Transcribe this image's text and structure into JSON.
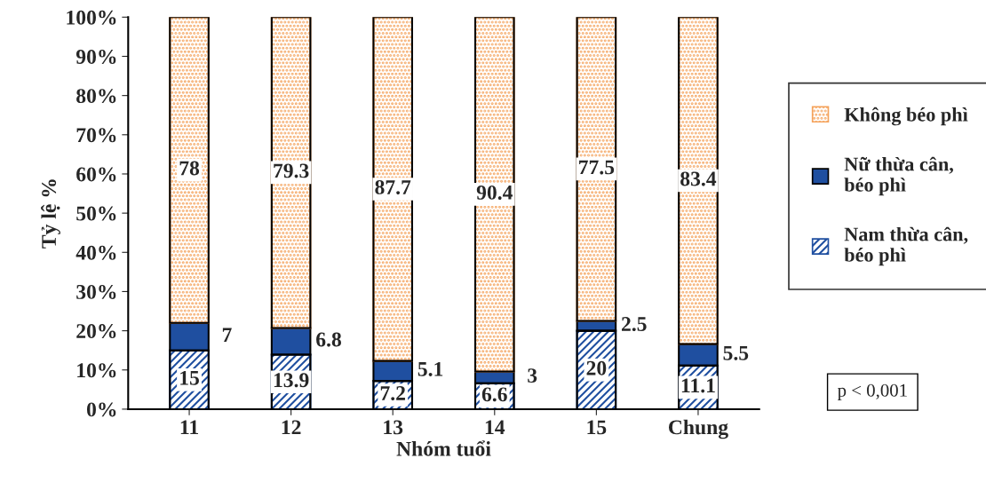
{
  "chart_data": {
    "type": "bar",
    "stacked": true,
    "xlabel": "Nhóm tuổi",
    "ylabel": "Tỷ lệ %",
    "categories": [
      "11",
      "12",
      "13",
      "14",
      "15",
      "Chung"
    ],
    "series": [
      {
        "name": "Nam thừa cân,\nbéo phì",
        "color": "#1f4fa0",
        "values": [
          15,
          13.9,
          7.2,
          6.6,
          20,
          11.1
        ]
      },
      {
        "name": "Nữ thừa cân,\nbéo phì",
        "color": "#1f4fa0",
        "values": [
          7,
          6.8,
          5.1,
          3,
          2.5,
          5.5
        ]
      },
      {
        "name": "Không béo phì",
        "color": "#f5a35c",
        "values": [
          78,
          79.3,
          87.7,
          90.4,
          77.5,
          83.4
        ]
      }
    ],
    "ylim": [
      0,
      100
    ],
    "yticks": [
      {
        "value": 0,
        "label": "0%"
      },
      {
        "value": 10,
        "label": "10%"
      },
      {
        "value": 20,
        "label": "20%"
      },
      {
        "value": 30,
        "label": "30%"
      },
      {
        "value": 40,
        "label": "40%"
      },
      {
        "value": 50,
        "label": "50%"
      },
      {
        "value": 60,
        "label": "60%"
      },
      {
        "value": 70,
        "label": "70%"
      },
      {
        "value": 80,
        "label": "80%"
      },
      {
        "value": 90,
        "label": "90%"
      },
      {
        "value": 100,
        "label": "100%"
      }
    ],
    "data_labels": true,
    "legend": "right",
    "grid": false,
    "annotations": [
      "p < 0,001"
    ]
  }
}
